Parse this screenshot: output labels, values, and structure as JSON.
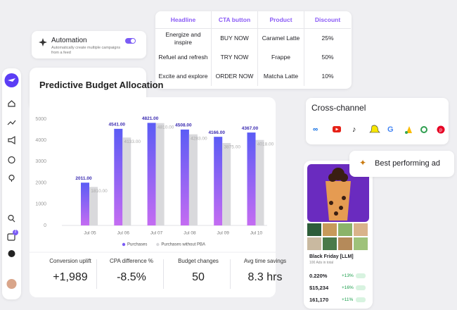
{
  "automation": {
    "title": "Automation",
    "description": "Automatically create multiple campaigns from a feed"
  },
  "table": {
    "headers": [
      "Headline",
      "CTA button",
      "Product",
      "Discount"
    ],
    "rows": [
      [
        "Energize and inspire",
        "BUY NOW",
        "Caramel Latte",
        "25%"
      ],
      [
        "Refuel and refresh",
        "TRY NOW",
        "Frappe",
        "50%"
      ],
      [
        "Excite and explore",
        "ORDER NOW",
        "Matcha Latte",
        "10%"
      ]
    ]
  },
  "sidebar": {
    "badge": "2"
  },
  "chart": {
    "type": "bar",
    "title": "Predictive Budget Allocation",
    "categories": [
      "Jul 05",
      "Jul 06",
      "Jul 07",
      "Jul 08",
      "Jul 09",
      "Jul 10"
    ],
    "series": [
      {
        "name": "Purchases",
        "color": "#7b5cf5",
        "values": [
          2011,
          4541,
          4821,
          4508,
          4166,
          4367
        ],
        "value_labels": [
          "2011.00",
          "4541.00",
          "4821.00",
          "4508.00",
          "4166.00",
          "4367.00"
        ]
      },
      {
        "name": "Purchases without PBA",
        "color": "#d9d9dc",
        "values": [
          1810,
          4133,
          4810,
          4283,
          3875,
          4018
        ],
        "value_labels": [
          "1810.00",
          "4133.00",
          "4810.00",
          "4283.00",
          "3875.00",
          "4018.00"
        ]
      }
    ],
    "ylim": [
      0,
      5000
    ],
    "yticks": [
      0,
      1000,
      2000,
      3000,
      4000,
      5000
    ],
    "grid": false
  },
  "stats": [
    {
      "label": "Conversion uplift",
      "value": "+1,989"
    },
    {
      "label": "CPA difference %",
      "value": "-8.5%"
    },
    {
      "label": "Budget changes",
      "value": "50"
    },
    {
      "label": "Avg time savings",
      "value": "8.3 hrs"
    }
  ],
  "cross_channel": {
    "title": "Cross-channel"
  },
  "best_ad": {
    "title": "Best performing ad"
  },
  "phone": {
    "title": "Black Friday [LLM]",
    "subtitle": "100 Ads in total",
    "metrics": [
      {
        "value": "0.220%",
        "change": "+13%"
      },
      {
        "value": "$15,234",
        "change": "+16%"
      },
      {
        "value": "161,170",
        "change": "+11%"
      }
    ]
  }
}
